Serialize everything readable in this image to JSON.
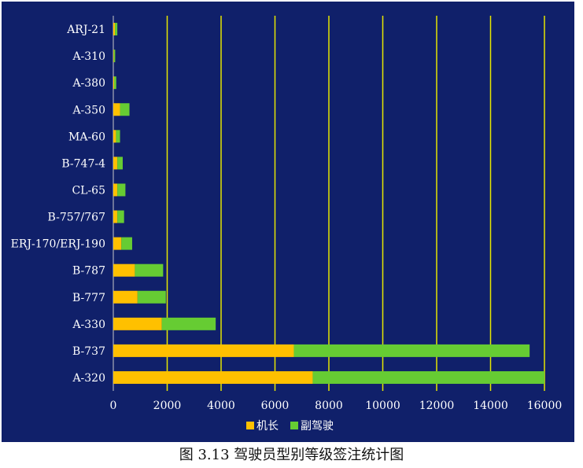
{
  "caption": "图 3.13 驾驶员型别等级签注统计图",
  "colors": {
    "background": "#10206a",
    "gridline": "#e6e600",
    "axis_text": "#ffffff",
    "captain": "#ffc000",
    "first_officer": "#66cc33"
  },
  "chart_data": {
    "type": "bar",
    "orientation": "horizontal",
    "stacked": true,
    "categories": [
      "ARJ-21",
      "A-310",
      "A-380",
      "A-350",
      "MA-60",
      "B-747-4",
      "CL-65",
      "B-757/767",
      "ERJ-170/ERJ-190",
      "B-787",
      "B-777",
      "A-330",
      "B-737",
      "A-320"
    ],
    "series": [
      {
        "name": "机长",
        "values": [
          60,
          20,
          30,
          250,
          100,
          150,
          150,
          150,
          300,
          800,
          900,
          1800,
          6700,
          7400
        ]
      },
      {
        "name": "副驾驶",
        "values": [
          90,
          50,
          80,
          350,
          150,
          200,
          300,
          250,
          400,
          1050,
          1050,
          2000,
          8750,
          8600
        ]
      }
    ],
    "xlim": [
      0,
      16000
    ],
    "xticks": [
      0,
      2000,
      4000,
      6000,
      8000,
      10000,
      12000,
      14000,
      16000
    ],
    "grid": true,
    "legend": "bottom-center"
  }
}
